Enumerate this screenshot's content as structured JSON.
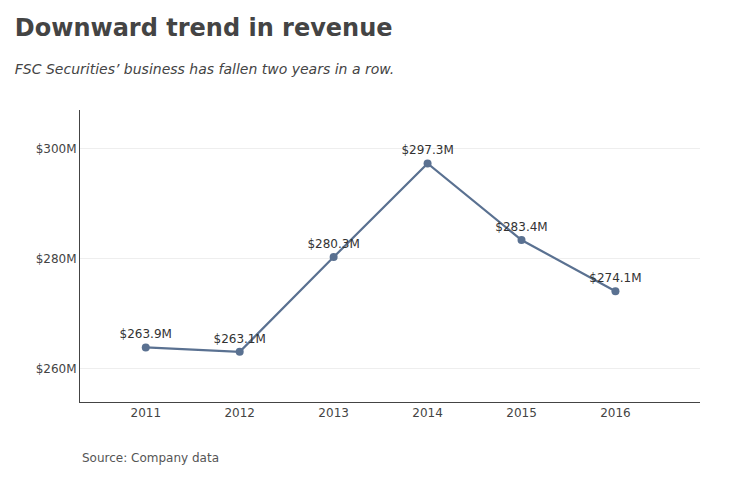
{
  "chart_data": {
    "type": "line",
    "title": "Downward trend in revenue",
    "subtitle": "FSC Securities’ business has fallen two years in a row.",
    "annotations": [
      "Source: Company data"
    ],
    "x": [
      2011,
      2012,
      2013,
      2014,
      2015,
      2016
    ],
    "values": [
      263.9,
      263.1,
      280.3,
      297.3,
      283.4,
      274.1
    ],
    "value_labels": [
      "$263.9M",
      "$263.1M",
      "$280.3M",
      "$297.3M",
      "$283.4M",
      "$274.1M"
    ],
    "data_labels": true,
    "color": "#5a7191",
    "marker": "circle",
    "line_style": "solid",
    "xlim": [
      2010.3,
      2016.9
    ],
    "xticks": [
      2011,
      2012,
      2013,
      2014,
      2015,
      2016
    ],
    "ylim": [
      254,
      307
    ],
    "yticks": [
      {
        "value": 260,
        "label": "$260M"
      },
      {
        "value": 280,
        "label": "$280M"
      },
      {
        "value": 300,
        "label": "$300M"
      }
    ],
    "grid": true
  }
}
